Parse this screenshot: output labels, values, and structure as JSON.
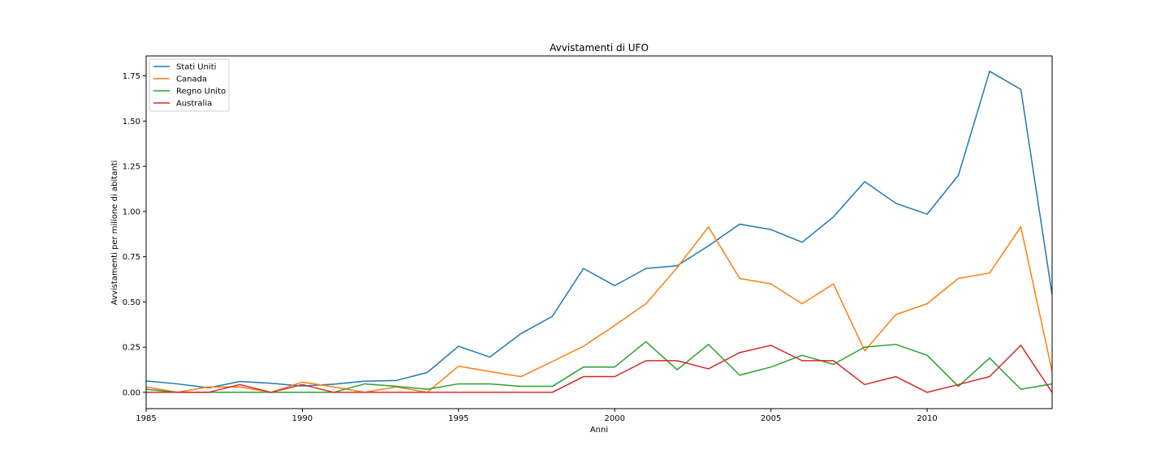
{
  "chart_data": {
    "type": "line",
    "title": "Avvistamenti di UFO",
    "xlabel": "Anni",
    "ylabel": "Avvistamenti per milione di abitanti",
    "xlim": [
      1985,
      2014
    ],
    "ylim": [
      -0.09,
      1.86
    ],
    "xticks": [
      "1985",
      "1990",
      "1995",
      "2000",
      "2005",
      "2010"
    ],
    "yticks": [
      "0.00",
      "0.25",
      "0.50",
      "0.75",
      "1.00",
      "1.25",
      "1.50",
      "1.75"
    ],
    "grid": false,
    "legend_position": "top-left",
    "x": [
      1985,
      1986,
      1987,
      1988,
      1989,
      1990,
      1991,
      1992,
      1993,
      1994,
      1995,
      1996,
      1997,
      1998,
      1999,
      2000,
      2001,
      2002,
      2003,
      2004,
      2005,
      2006,
      2007,
      2008,
      2009,
      2010,
      2011,
      2012,
      2013,
      2014
    ],
    "series": [
      {
        "name": "Stati Uniti",
        "color": "#1f77b4",
        "values": [
          0.063,
          0.047,
          0.025,
          0.06,
          0.05,
          0.035,
          0.045,
          0.062,
          0.065,
          0.11,
          0.255,
          0.195,
          0.325,
          0.42,
          0.685,
          0.59,
          0.685,
          0.7,
          0.81,
          0.93,
          0.9,
          0.83,
          0.97,
          1.165,
          1.045,
          0.985,
          1.2,
          1.775,
          1.675,
          0.54
        ]
      },
      {
        "name": "Canada",
        "color": "#ff7f0e",
        "values": [
          0.03,
          0.0,
          0.03,
          0.03,
          0.0,
          0.057,
          0.03,
          0.0,
          0.03,
          0.0,
          0.145,
          0.115,
          0.087,
          0.17,
          0.255,
          0.37,
          0.49,
          0.69,
          0.915,
          0.63,
          0.6,
          0.49,
          0.6,
          0.23,
          0.43,
          0.49,
          0.63,
          0.66,
          0.915,
          0.115
        ]
      },
      {
        "name": "Regno Unito",
        "color": "#2ca02c",
        "values": [
          0.017,
          0.0,
          0.0,
          0.0,
          0.0,
          0.0,
          0.0,
          0.047,
          0.033,
          0.017,
          0.047,
          0.047,
          0.033,
          0.033,
          0.14,
          0.14,
          0.28,
          0.125,
          0.265,
          0.095,
          0.14,
          0.205,
          0.155,
          0.25,
          0.265,
          0.205,
          0.033,
          0.19,
          0.017,
          0.047
        ]
      },
      {
        "name": "Australia",
        "color": "#d62728",
        "values": [
          0.0,
          0.0,
          0.0,
          0.043,
          0.0,
          0.043,
          0.0,
          0.0,
          0.0,
          0.0,
          0.0,
          0.0,
          0.0,
          0.0,
          0.087,
          0.087,
          0.175,
          0.175,
          0.13,
          0.22,
          0.26,
          0.175,
          0.175,
          0.043,
          0.087,
          0.0,
          0.043,
          0.087,
          0.26,
          0.0
        ]
      }
    ]
  }
}
